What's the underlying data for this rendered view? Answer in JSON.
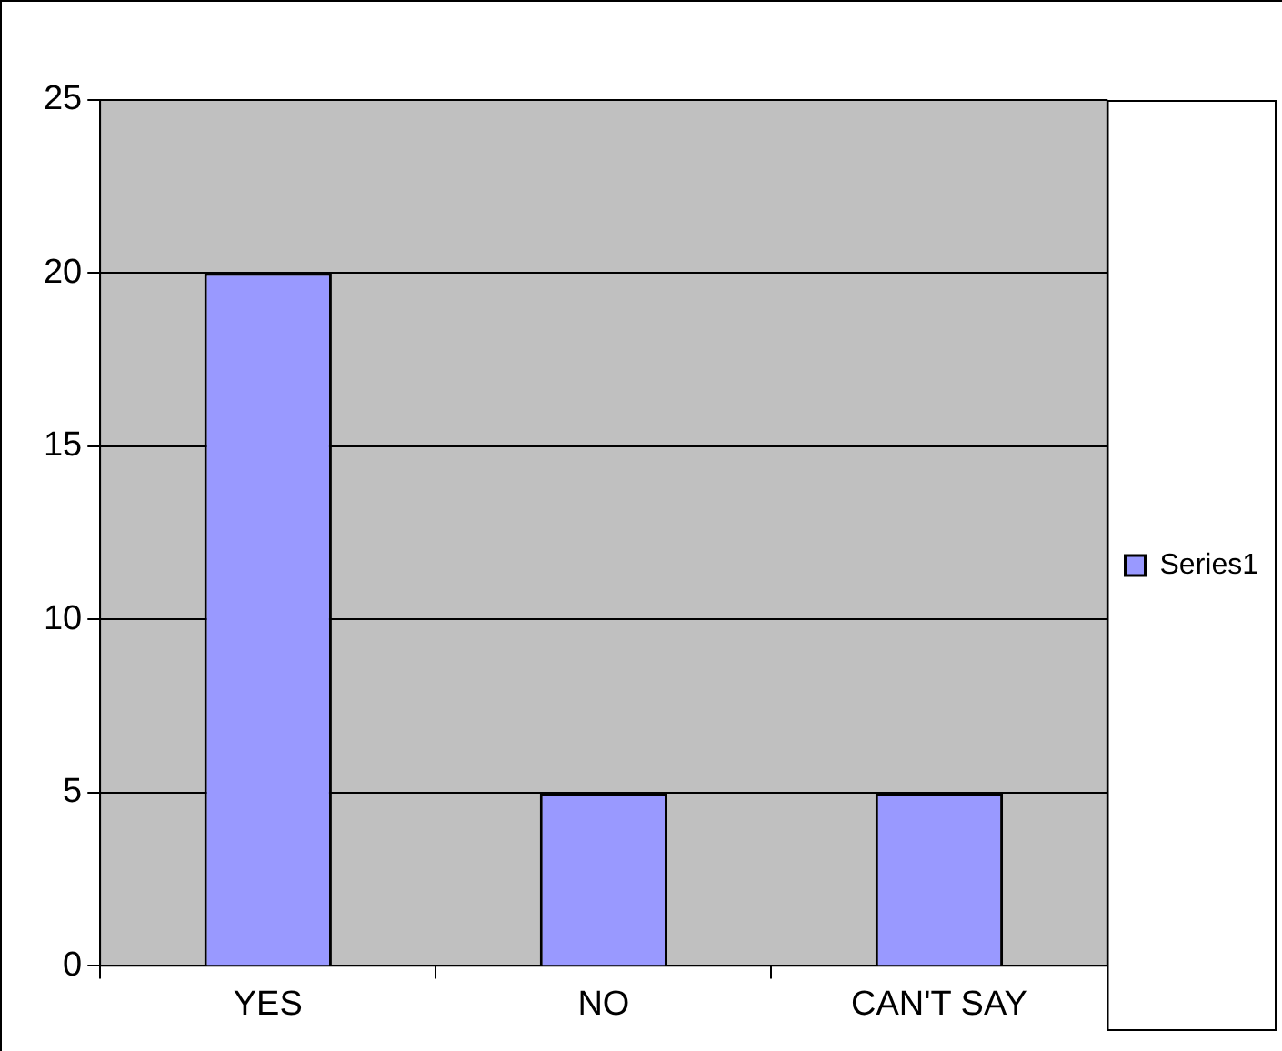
{
  "chart_data": {
    "type": "bar",
    "categories": [
      "YES",
      "NO",
      "CAN'T SAY"
    ],
    "series": [
      {
        "name": "Series1",
        "color": "#9999ff",
        "values": [
          20,
          5,
          5
        ]
      }
    ],
    "ylim": [
      0,
      25
    ],
    "yticks": [
      0,
      5,
      10,
      15,
      20,
      25
    ],
    "grid": "y",
    "legend": "right"
  }
}
